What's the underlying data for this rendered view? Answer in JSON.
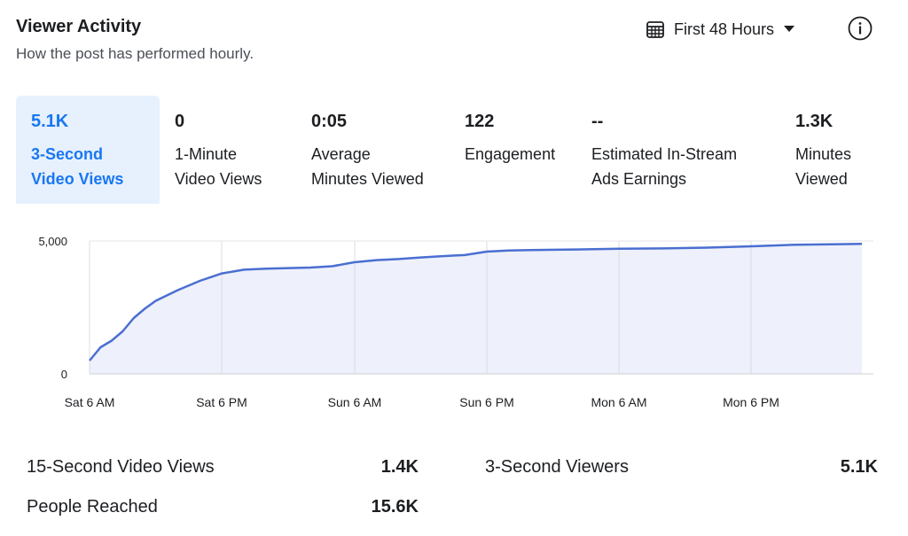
{
  "header": {
    "title": "Viewer Activity",
    "subtitle": "How the post has performed hourly.",
    "range_label": "First 48 Hours"
  },
  "metrics": [
    {
      "value": "5.1K",
      "label": "3-Second\nVideo Views",
      "active": true
    },
    {
      "value": "0",
      "label": "1-Minute\nVideo Views"
    },
    {
      "value": "0:05",
      "label": "Average\nMinutes Viewed"
    },
    {
      "value": "122",
      "label": "Engagement"
    },
    {
      "value": "--",
      "label": "Estimated In-Stream\nAds Earnings"
    },
    {
      "value": "1.3K",
      "label": "Minutes\nViewed"
    }
  ],
  "chart_data": {
    "type": "area",
    "x_ticks": [
      "Sat 6 AM",
      "Sat 6 PM",
      "Sun 6 AM",
      "Sun 6 PM",
      "Mon 6 AM",
      "Mon 6 PM"
    ],
    "y_ticks": [
      "5,000",
      "0"
    ],
    "ylim": [
      0,
      5000
    ],
    "grid": "vertical",
    "accent_color": "#4a6fd1",
    "fill_color": "#eef0fb",
    "series": [
      {
        "x": [
          0,
          1,
          2,
          3,
          4,
          5,
          6,
          7,
          8,
          10,
          12,
          14,
          16,
          18,
          20,
          22,
          24,
          26,
          28,
          30,
          32,
          34,
          36,
          38,
          40,
          44,
          48,
          52,
          56,
          60,
          64,
          68,
          70
        ],
        "values": [
          500,
          1000,
          1250,
          1600,
          2100,
          2450,
          2750,
          2950,
          3150,
          3500,
          3780,
          3920,
          3960,
          3980,
          4000,
          4050,
          4200,
          4280,
          4320,
          4380,
          4430,
          4470,
          4600,
          4640,
          4660,
          4680,
          4710,
          4720,
          4750,
          4800,
          4860,
          4880,
          4890
        ]
      }
    ]
  },
  "stats": [
    {
      "label": "15-Second Video Views",
      "value": "1.4K"
    },
    {
      "label": "3-Second Viewers",
      "value": "5.1K"
    },
    {
      "label": "People Reached",
      "value": "15.6K"
    }
  ]
}
